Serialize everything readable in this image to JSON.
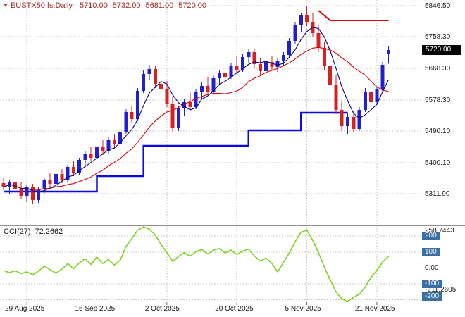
{
  "header": {
    "marker": "▼",
    "symbol": "EUSTX50.fs,Daily",
    "open": "5710.00",
    "high": "5732.00",
    "low": "5681.00",
    "close": "5720.00"
  },
  "indicator": {
    "name": "CCI(27)",
    "value": "72.2662",
    "max_label": "258.7443",
    "min_label": "-211.2605",
    "zero_label": "0.00",
    "level_badges": [
      {
        "text": "200",
        "value": 200
      },
      {
        "text": "100",
        "value": 100
      },
      {
        "text": "-100",
        "value": -100
      },
      {
        "text": "-200",
        "value": -200
      }
    ]
  },
  "price_axis": {
    "labels": [
      {
        "text": "5846.50",
        "value": 5846.5
      },
      {
        "text": "5758.30",
        "value": 5758.3
      },
      {
        "text": "5668.30",
        "value": 5668.3
      },
      {
        "text": "5578.30",
        "value": 5578.3
      },
      {
        "text": "5490.10",
        "value": 5490.1
      },
      {
        "text": "5400.10",
        "value": 5400.1
      },
      {
        "text": "5311.90",
        "value": 5311.9
      }
    ],
    "current": {
      "text": "5720.00",
      "value": 5720
    }
  },
  "time_axis": {
    "ticks": [
      {
        "label": "29 Aug 2025",
        "bar": 4
      },
      {
        "label": "16 Sep 2025",
        "bar": 16
      },
      {
        "label": "2 Oct 2025",
        "bar": 28
      },
      {
        "label": "20 Oct 2025",
        "bar": 40
      },
      {
        "label": "5 Nov 2025",
        "bar": 52
      },
      {
        "label": "21 Nov 2025",
        "bar": 64
      }
    ]
  },
  "colors": {
    "bull": "#2020cc",
    "bear": "#d42222",
    "ma_fast": "#000080",
    "ma_slow": "#e00000",
    "support": "#0a0ae0",
    "resistance": "#e00000",
    "cci": "#7cd421",
    "grid": "#c8c8c8",
    "separator": "#909090",
    "badge_blue": "#3a6ea5",
    "price_badge_bg": "#000000",
    "header_text": "#a52a2a"
  },
  "chart_data": {
    "type": "candlestick",
    "ylim": [
      5222,
      5862
    ],
    "candles": [
      [
        5342,
        5356,
        5322,
        5330
      ],
      [
        5330,
        5352,
        5310,
        5346
      ],
      [
        5346,
        5354,
        5318,
        5326
      ],
      [
        5326,
        5344,
        5298,
        5306
      ],
      [
        5306,
        5336,
        5288,
        5330
      ],
      [
        5330,
        5340,
        5282,
        5294
      ],
      [
        5294,
        5332,
        5286,
        5326
      ],
      [
        5326,
        5358,
        5314,
        5350
      ],
      [
        5350,
        5370,
        5332,
        5340
      ],
      [
        5340,
        5374,
        5330,
        5368
      ],
      [
        5368,
        5382,
        5342,
        5352
      ],
      [
        5352,
        5394,
        5346,
        5388
      ],
      [
        5388,
        5406,
        5362,
        5372
      ],
      [
        5372,
        5414,
        5364,
        5408
      ],
      [
        5408,
        5432,
        5392,
        5424
      ],
      [
        5424,
        5446,
        5406,
        5414
      ],
      [
        5414,
        5452,
        5404,
        5446
      ],
      [
        5446,
        5464,
        5422,
        5434
      ],
      [
        5434,
        5472,
        5426,
        5464
      ],
      [
        5464,
        5482,
        5440,
        5452
      ],
      [
        5452,
        5494,
        5444,
        5488
      ],
      [
        5488,
        5552,
        5482,
        5544
      ],
      [
        5544,
        5562,
        5512,
        5524
      ],
      [
        5524,
        5612,
        5518,
        5604
      ],
      [
        5604,
        5662,
        5598,
        5652
      ],
      [
        5652,
        5678,
        5634,
        5666
      ],
      [
        5666,
        5674,
        5612,
        5624
      ],
      [
        5624,
        5650,
        5598,
        5608
      ],
      [
        5608,
        5632,
        5558,
        5568
      ],
      [
        5568,
        5588,
        5486,
        5498
      ],
      [
        5498,
        5562,
        5490,
        5554
      ],
      [
        5554,
        5582,
        5532,
        5572
      ],
      [
        5572,
        5602,
        5550,
        5558
      ],
      [
        5558,
        5610,
        5552,
        5600
      ],
      [
        5600,
        5628,
        5582,
        5618
      ],
      [
        5618,
        5642,
        5592,
        5602
      ],
      [
        5602,
        5648,
        5596,
        5640
      ],
      [
        5640,
        5664,
        5620,
        5654
      ],
      [
        5654,
        5672,
        5632,
        5644
      ],
      [
        5644,
        5682,
        5638,
        5674
      ],
      [
        5674,
        5702,
        5654,
        5664
      ],
      [
        5664,
        5708,
        5658,
        5700
      ],
      [
        5700,
        5724,
        5682,
        5714
      ],
      [
        5714,
        5722,
        5670,
        5680
      ],
      [
        5680,
        5698,
        5650,
        5660
      ],
      [
        5660,
        5694,
        5652,
        5686
      ],
      [
        5686,
        5702,
        5662,
        5672
      ],
      [
        5672,
        5696,
        5658,
        5688
      ],
      [
        5688,
        5714,
        5676,
        5706
      ],
      [
        5706,
        5754,
        5698,
        5746
      ],
      [
        5746,
        5800,
        5738,
        5792
      ],
      [
        5792,
        5826,
        5772,
        5818
      ],
      [
        5818,
        5846,
        5788,
        5800
      ],
      [
        5800,
        5824,
        5756,
        5768
      ],
      [
        5768,
        5790,
        5714,
        5726
      ],
      [
        5726,
        5744,
        5662,
        5674
      ],
      [
        5674,
        5692,
        5610,
        5622
      ],
      [
        5622,
        5648,
        5538,
        5550
      ],
      [
        5550,
        5574,
        5490,
        5504
      ],
      [
        5504,
        5540,
        5482,
        5530
      ],
      [
        5530,
        5546,
        5486,
        5496
      ],
      [
        5496,
        5558,
        5490,
        5550
      ],
      [
        5550,
        5612,
        5544,
        5602
      ],
      [
        5602,
        5624,
        5560,
        5572
      ],
      [
        5572,
        5616,
        5566,
        5608
      ],
      [
        5608,
        5686,
        5600,
        5678
      ],
      [
        5710,
        5732,
        5681,
        5720
      ]
    ],
    "overlays": {
      "ma_fast_period": 5,
      "ma_slow_period": 13,
      "support_steps": [
        [
          0,
          15,
          5318
        ],
        [
          16,
          23,
          5362
        ],
        [
          24,
          41,
          5448
        ],
        [
          42,
          50,
          5492
        ],
        [
          51,
          59,
          5542
        ]
      ],
      "resistance_points": [
        [
          54,
          5832
        ],
        [
          56,
          5804
        ],
        [
          66,
          5804
        ]
      ]
    },
    "cci": {
      "period": 27,
      "range": {
        "max": 258.7443,
        "min": -211.2605
      },
      "levels": [
        200,
        100,
        0,
        -100,
        -200
      ],
      "values": [
        -15,
        -30,
        -18,
        -35,
        -25,
        -42,
        -20,
        12,
        -12,
        -32,
        -8,
        28,
        -5,
        32,
        58,
        22,
        68,
        28,
        52,
        18,
        48,
        135,
        185,
        238,
        258,
        244,
        208,
        148,
        96,
        42,
        72,
        96,
        74,
        102,
        116,
        88,
        112,
        122,
        94,
        112,
        84,
        106,
        118,
        76,
        44,
        62,
        28,
        -25,
        35,
        95,
        165,
        225,
        238,
        175,
        95,
        5,
        -75,
        -150,
        -195,
        -211,
        -185,
        -165,
        -120,
        -60,
        -15,
        38,
        72.2662
      ]
    }
  }
}
